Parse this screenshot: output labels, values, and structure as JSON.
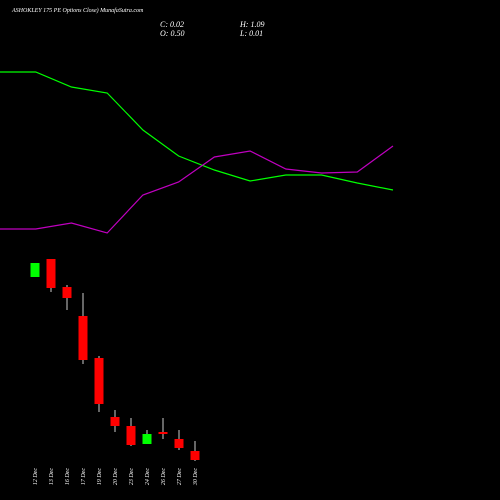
{
  "chart_data": [
    {
      "type": "candlestick",
      "title": "ASHOKLEY 175 PE Options  Close) MunafaSutra.com",
      "stats": [
        "C: 0.02",
        "O: 0.50",
        "H: 1.09",
        "L: 0.01"
      ],
      "categories": [
        "12 Dec",
        "13 Dec",
        "16 Dec",
        "17 Dec",
        "19 Dec",
        "20 Dec",
        "23 Dec",
        "24 Dec",
        "26 Dec",
        "27 Dec",
        "30 Dec"
      ],
      "open": [
        3.86,
        4.22,
        3.66,
        3.08,
        2.24,
        1.06,
        0.88,
        0.52,
        0.76,
        0.62,
        0.38
      ],
      "high": [
        4.14,
        4.22,
        3.7,
        3.54,
        2.28,
        1.2,
        1.04,
        0.8,
        1.04,
        0.8,
        0.58
      ],
      "low": [
        3.86,
        3.56,
        3.2,
        2.12,
        1.16,
        0.76,
        0.48,
        0.52,
        0.62,
        0.4,
        0.18
      ],
      "close": [
        4.14,
        3.64,
        3.44,
        2.2,
        1.32,
        0.88,
        0.5,
        0.72,
        0.72,
        0.44,
        0.2
      ],
      "up_color": "#00ff00",
      "down_color": "#ff0000",
      "ylim": [
        0,
        4.4
      ]
    },
    {
      "type": "line",
      "x": [
        0,
        1,
        2,
        3,
        4,
        5,
        6,
        7,
        8,
        9,
        10,
        11
      ],
      "xlim": [
        0,
        11
      ],
      "ylim": [
        0,
        100
      ],
      "series": [
        {
          "color": "#00ff00",
          "values": [
            89,
            89,
            81.5,
            78.5,
            60,
            47,
            40,
            34.5,
            37.5,
            37.5,
            33.5,
            30
          ]
        },
        {
          "color": "#c000c0",
          "values": [
            10.5,
            10.5,
            13.5,
            8.5,
            27.5,
            34,
            46.5,
            49.5,
            40.5,
            38.5,
            39,
            52
          ]
        }
      ]
    }
  ]
}
